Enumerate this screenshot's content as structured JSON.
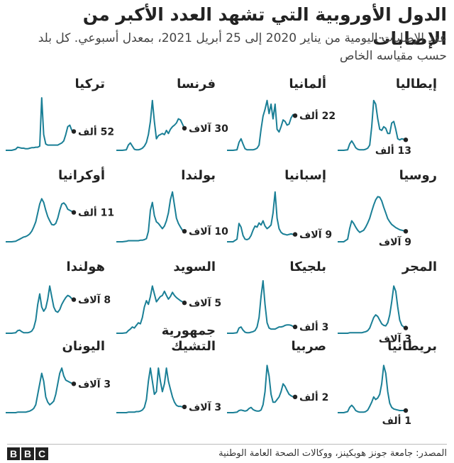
{
  "title": "الدول الأوروبية التي تشهد العدد الأكبر من الإصابات",
  "subtitle": "عدد الإصابات اليومية من يناير 2020 إلى 25 أبريل 2021، بمعدل أسبوعي. كل بلد حسب مقياسه الخاص",
  "source": "المصدر: جامعة جونز هوبكينز، ووكالات الصحة العامة الوطنية",
  "logo": [
    "B",
    "B",
    "C"
  ],
  "colors": {
    "line": "#1a7f96",
    "dot": "#222222",
    "text": "#222222"
  },
  "chart_data": {
    "type": "line",
    "x_range": [
      "يناير 2020",
      "25 أبريل 2021"
    ],
    "x_weeks": [
      0,
      6,
      10,
      12,
      14,
      16,
      18,
      20,
      22,
      24,
      26,
      28,
      30,
      32,
      34,
      36,
      38,
      40,
      42,
      44,
      46,
      48,
      50,
      52,
      54,
      56,
      58,
      60,
      62,
      64,
      66,
      68
    ],
    "panels": [
      {
        "name": "إيطاليا",
        "label": "13 ألف",
        "label_pos": "below",
        "y_max": 1.0,
        "values": [
          0,
          0,
          0.01,
          0.12,
          0.18,
          0.12,
          0.05,
          0.02,
          0.01,
          0.01,
          0.01,
          0.02,
          0.04,
          0.1,
          0.45,
          0.95,
          0.88,
          0.6,
          0.4,
          0.38,
          0.45,
          0.42,
          0.32,
          0.32,
          0.52,
          0.55,
          0.4,
          0.22,
          0.2,
          0.22,
          0.21,
          0.2
        ]
      },
      {
        "name": "ألمانيا",
        "label": "22 ألف",
        "label_pos": "right",
        "y_max": 1.0,
        "values": [
          0,
          0,
          0.01,
          0.15,
          0.22,
          0.12,
          0.03,
          0.01,
          0.01,
          0.01,
          0.01,
          0.02,
          0.04,
          0.1,
          0.4,
          0.65,
          0.78,
          0.95,
          0.7,
          0.88,
          0.6,
          0.88,
          0.4,
          0.35,
          0.45,
          0.58,
          0.55,
          0.48,
          0.5,
          0.62,
          0.68,
          0.66
        ]
      },
      {
        "name": "فرنسا",
        "label": "30 آلاف",
        "label_pos": "left",
        "y_max": 1.0,
        "values": [
          0,
          0,
          0.01,
          0.1,
          0.14,
          0.08,
          0.02,
          0.01,
          0.01,
          0.02,
          0.04,
          0.08,
          0.15,
          0.3,
          0.55,
          0.95,
          0.55,
          0.22,
          0.28,
          0.3,
          0.32,
          0.3,
          0.38,
          0.32,
          0.4,
          0.45,
          0.48,
          0.52,
          0.6,
          0.58,
          0.5,
          0.42
        ]
      },
      {
        "name": "تركيا",
        "label": "52 ألف",
        "label_pos": "left",
        "y_max": 1.0,
        "values": [
          0,
          0,
          0.02,
          0.06,
          0.05,
          0.04,
          0.04,
          0.03,
          0.03,
          0.04,
          0.05,
          0.05,
          0.06,
          0.06,
          0.08,
          1.0,
          0.3,
          0.12,
          0.1,
          0.1,
          0.1,
          0.1,
          0.1,
          0.1,
          0.12,
          0.14,
          0.18,
          0.3,
          0.45,
          0.48,
          0.38,
          0.36
        ]
      },
      {
        "name": "روسيا",
        "label": "9 آلاف",
        "label_pos": "below",
        "y_max": 1.0,
        "values": [
          0,
          0,
          0.05,
          0.25,
          0.4,
          0.35,
          0.28,
          0.22,
          0.18,
          0.2,
          0.22,
          0.28,
          0.36,
          0.45,
          0.58,
          0.7,
          0.8,
          0.86,
          0.85,
          0.78,
          0.66,
          0.55,
          0.44,
          0.38,
          0.33,
          0.3,
          0.27,
          0.25,
          0.23,
          0.22,
          0.21,
          0.2
        ]
      },
      {
        "name": "إسبانيا",
        "label": "9 آلاف",
        "label_pos": "left",
        "y_max": 1.0,
        "values": [
          0,
          0,
          0.05,
          0.35,
          0.28,
          0.12,
          0.05,
          0.04,
          0.06,
          0.12,
          0.22,
          0.3,
          0.28,
          0.36,
          0.32,
          0.4,
          0.3,
          0.25,
          0.28,
          0.32,
          0.55,
          0.95,
          0.45,
          0.25,
          0.18,
          0.15,
          0.14,
          0.13,
          0.14,
          0.15,
          0.14,
          0.14
        ]
      },
      {
        "name": "بولندا",
        "label": "10 آلاف",
        "label_pos": "left",
        "y_max": 1.0,
        "values": [
          0,
          0,
          0.01,
          0.02,
          0.02,
          0.02,
          0.02,
          0.02,
          0.02,
          0.03,
          0.03,
          0.04,
          0.06,
          0.2,
          0.6,
          0.75,
          0.5,
          0.38,
          0.35,
          0.3,
          0.25,
          0.3,
          0.4,
          0.55,
          0.8,
          0.95,
          0.7,
          0.45,
          0.35,
          0.28,
          0.22,
          0.2
        ]
      },
      {
        "name": "أوكرانيا",
        "label": "11 ألف",
        "label_pos": "left",
        "y_max": 1.0,
        "values": [
          0,
          0,
          0.01,
          0.03,
          0.05,
          0.07,
          0.09,
          0.1,
          0.12,
          0.15,
          0.2,
          0.28,
          0.38,
          0.55,
          0.72,
          0.82,
          0.75,
          0.6,
          0.48,
          0.4,
          0.33,
          0.32,
          0.35,
          0.45,
          0.6,
          0.72,
          0.74,
          0.7,
          0.62,
          0.6,
          0.58,
          0.56
        ]
      },
      {
        "name": "المجر",
        "label": "3 آلاف",
        "label_pos": "below",
        "y_max": 1.0,
        "values": [
          0,
          0,
          0,
          0.01,
          0.01,
          0.01,
          0.01,
          0.01,
          0.01,
          0.01,
          0.02,
          0.03,
          0.05,
          0.1,
          0.2,
          0.3,
          0.35,
          0.32,
          0.25,
          0.18,
          0.15,
          0.14,
          0.2,
          0.35,
          0.6,
          0.9,
          0.8,
          0.5,
          0.25,
          0.15,
          0.12,
          0.1
        ]
      },
      {
        "name": "بلجيكا",
        "label": "3 ألف",
        "label_pos": "left",
        "y_max": 1.0,
        "values": [
          0,
          0,
          0.01,
          0.1,
          0.12,
          0.06,
          0.02,
          0.01,
          0.01,
          0.02,
          0.03,
          0.05,
          0.12,
          0.3,
          0.7,
          1.0,
          0.55,
          0.2,
          0.1,
          0.08,
          0.08,
          0.08,
          0.1,
          0.12,
          0.12,
          0.13,
          0.15,
          0.16,
          0.16,
          0.15,
          0.13,
          0.12
        ]
      },
      {
        "name": "السويد",
        "label": "5 آلاف",
        "label_pos": "left",
        "y_max": 1.0,
        "values": [
          0,
          0,
          0.01,
          0.05,
          0.08,
          0.12,
          0.1,
          0.15,
          0.2,
          0.18,
          0.3,
          0.5,
          0.62,
          0.55,
          0.7,
          0.9,
          0.75,
          0.6,
          0.65,
          0.7,
          0.72,
          0.8,
          0.72,
          0.65,
          0.7,
          0.78,
          0.72,
          0.68,
          0.65,
          0.62,
          0.6,
          0.58
        ]
      },
      {
        "name": "هولندا",
        "label": "8 آلاف",
        "label_pos": "left",
        "y_max": 1.0,
        "values": [
          0,
          0,
          0.01,
          0.05,
          0.06,
          0.03,
          0.01,
          0.01,
          0.01,
          0.02,
          0.04,
          0.1,
          0.25,
          0.55,
          0.75,
          0.5,
          0.42,
          0.48,
          0.65,
          0.9,
          0.7,
          0.5,
          0.42,
          0.4,
          0.45,
          0.55,
          0.62,
          0.68,
          0.72,
          0.7,
          0.66,
          0.64
        ]
      },
      {
        "name": "بريطانيا",
        "label": "1 ألف",
        "label_pos": "below",
        "y_max": 1.0,
        "values": [
          0,
          0,
          0.02,
          0.1,
          0.14,
          0.1,
          0.04,
          0.02,
          0.01,
          0.01,
          0.01,
          0.02,
          0.05,
          0.12,
          0.2,
          0.3,
          0.25,
          0.28,
          0.35,
          0.55,
          0.9,
          0.75,
          0.4,
          0.18,
          0.1,
          0.07,
          0.06,
          0.05,
          0.04,
          0.04,
          0.04,
          0.04
        ]
      },
      {
        "name": "صربيا",
        "label": "2 ألف",
        "label_pos": "left",
        "y_max": 1.0,
        "values": [
          0,
          0,
          0.01,
          0.04,
          0.05,
          0.04,
          0.03,
          0.04,
          0.08,
          0.1,
          0.06,
          0.04,
          0.03,
          0.03,
          0.05,
          0.15,
          0.4,
          0.9,
          0.7,
          0.35,
          0.2,
          0.2,
          0.25,
          0.3,
          0.4,
          0.55,
          0.5,
          0.42,
          0.35,
          0.32,
          0.3,
          0.3
        ]
      },
      {
        "name": "جمهورية\nالتشيك",
        "label": "3 آلاف",
        "label_pos": "left",
        "y_max": 1.0,
        "values": [
          0,
          0,
          0,
          0.01,
          0.01,
          0.01,
          0.01,
          0.02,
          0.02,
          0.03,
          0.05,
          0.1,
          0.25,
          0.6,
          0.85,
          0.6,
          0.35,
          0.4,
          0.85,
          0.6,
          0.4,
          0.55,
          0.85,
          0.6,
          0.45,
          0.3,
          0.2,
          0.14,
          0.12,
          0.12,
          0.11,
          0.11
        ]
      },
      {
        "name": "اليونان",
        "label": "3 آلاف",
        "label_pos": "left",
        "y_max": 1.0,
        "values": [
          0,
          0,
          0,
          0.01,
          0.01,
          0.01,
          0.01,
          0.01,
          0.02,
          0.03,
          0.05,
          0.08,
          0.15,
          0.35,
          0.55,
          0.75,
          0.6,
          0.3,
          0.2,
          0.15,
          0.18,
          0.22,
          0.35,
          0.55,
          0.75,
          0.85,
          0.7,
          0.62,
          0.6,
          0.58,
          0.56,
          0.55
        ]
      }
    ]
  }
}
